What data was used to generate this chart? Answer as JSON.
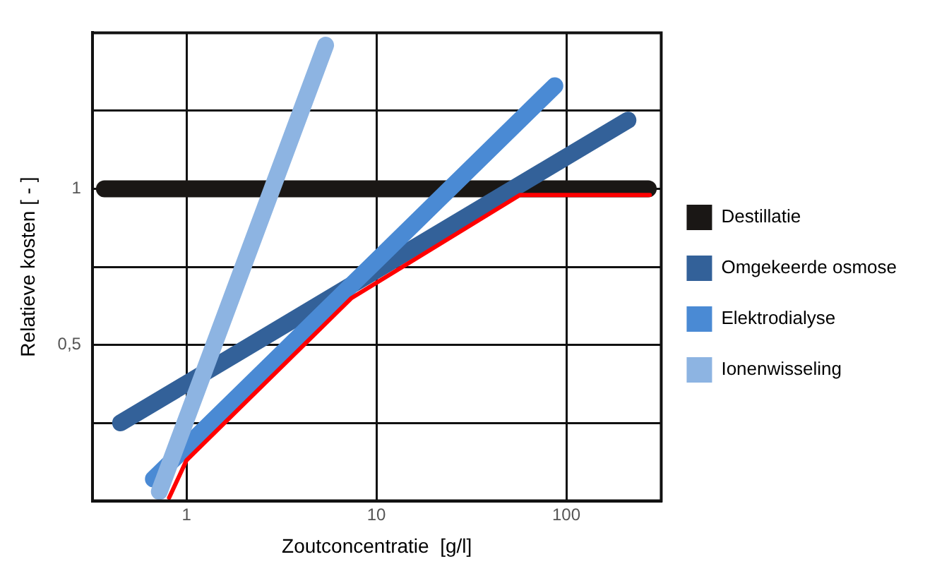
{
  "chart_data": {
    "type": "line",
    "xlabel": "Zoutconcentratie  [g/l]",
    "ylabel": "Relatieve kosten [ - ]",
    "log": "x",
    "xlim": [
      0.32,
      316
    ],
    "xticks": [
      1,
      10,
      100
    ],
    "ylim": [
      0,
      1.5
    ],
    "yticks": [
      {
        "value": 0,
        "label": null
      },
      {
        "value": 0.25,
        "label": null
      },
      {
        "value": 0.5,
        "label": "0,5"
      },
      {
        "value": 0.75,
        "label": null
      },
      {
        "value": 1,
        "label": "1"
      },
      {
        "value": 1.25,
        "label": null
      },
      {
        "value": 1.5,
        "label": null
      }
    ],
    "grid": true,
    "legend": "right",
    "marker": "none",
    "line_style": "solid",
    "series": [
      {
        "name": "Destillatie",
        "color": "#1a1715",
        "x": [
          0.37,
          270
        ],
        "values": [
          1,
          1
        ]
      },
      {
        "name": "Omgekeerde osmose",
        "color": "#336199",
        "x": [
          0.45,
          211
        ],
        "values": [
          0.25,
          1.22
        ]
      },
      {
        "name": "Elektrodialyse",
        "color": "#4a8ad4",
        "x": [
          0.67,
          87
        ],
        "values": [
          0.07,
          1.33
        ]
      },
      {
        "name": "Ionenwisseling",
        "color": "#8db4e2",
        "x": [
          0.72,
          5.4
        ],
        "values": [
          0.03,
          1.46
        ]
      },
      {
        "color": "#ff0000",
        "x": [
          0.81,
          1.0,
          7.4,
          57,
          275
        ],
        "values": [
          0.01,
          0.13,
          0.65,
          0.98,
          0.98
        ]
      }
    ]
  }
}
